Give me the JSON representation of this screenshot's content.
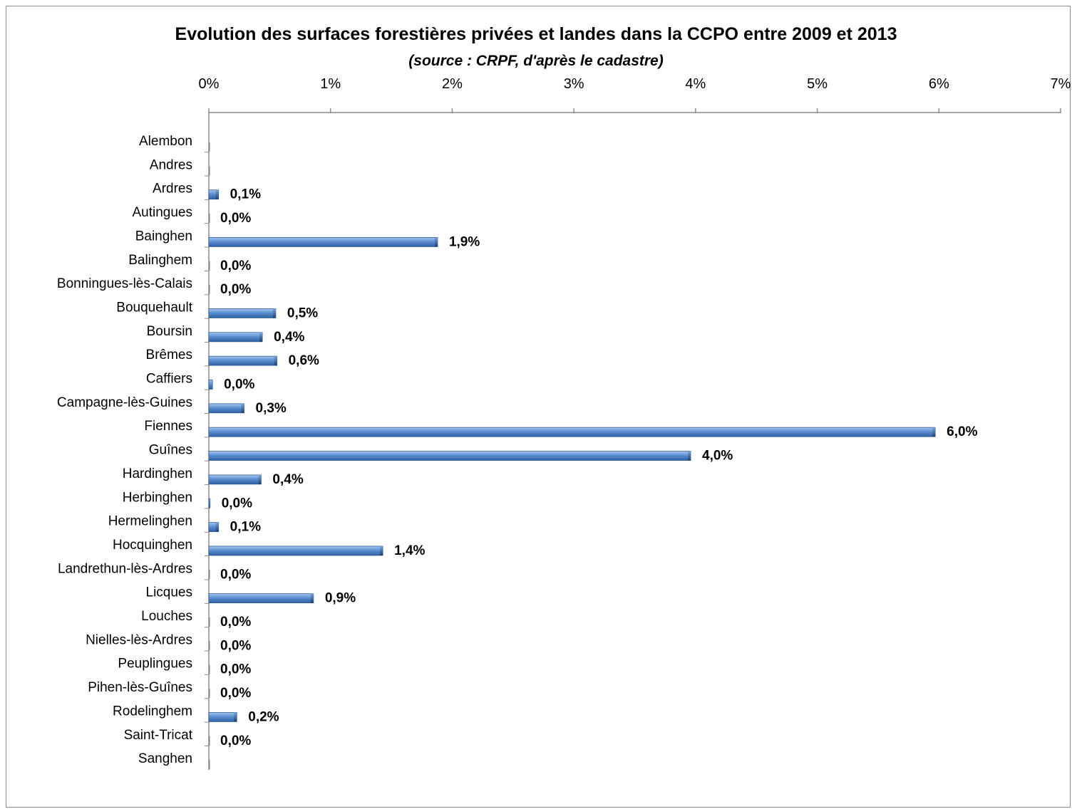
{
  "chart_data": {
    "type": "bar",
    "orientation": "horizontal",
    "title": "Evolution des surfaces forestières privées et landes dans la CCPO entre 2009 et 2013",
    "subtitle": "(source : CRPF, d'après le cadastre)",
    "xlim": [
      0,
      7
    ],
    "x_ticks": [
      "0%",
      "1%",
      "2%",
      "3%",
      "4%",
      "5%",
      "6%",
      "7%"
    ],
    "x_axis_position": "top",
    "grid": false,
    "bar_color": "#4f81bd",
    "categories": [
      "Alembon",
      "Andres",
      "Ardres",
      "Autingues",
      "Bainghen",
      "Balinghem",
      "Bonningues-lès-Calais",
      "Bouquehault",
      "Boursin",
      "Brêmes",
      "Caffiers",
      "Campagne-lès-Guines",
      "Fiennes",
      "Guînes",
      "Hardinghen",
      "Herbinghen",
      "Hermelinghen",
      "Hocquinghen",
      "Landrethun-lès-Ardres",
      "Licques",
      "Louches",
      "Nielles-lès-Ardres",
      "Peuplingues",
      "Pihen-lès-Guînes",
      "Rodelinghem",
      "Saint-Tricat",
      "Sanghen"
    ],
    "values": [
      0,
      0,
      0.08,
      0,
      1.88,
      0,
      0,
      0.55,
      0.44,
      0.56,
      0.03,
      0.29,
      5.97,
      3.96,
      0.43,
      0.01,
      0.08,
      1.43,
      0,
      0.86,
      0,
      0,
      0,
      0,
      0.23,
      0,
      0
    ],
    "data_labels": [
      "",
      "",
      "0,1%",
      "0,0%",
      "1,9%",
      "0,0%",
      "0,0%",
      "0,5%",
      "0,4%",
      "0,6%",
      "0,0%",
      "0,3%",
      "6,0%",
      "4,0%",
      "0,4%",
      "0,0%",
      "0,1%",
      "1,4%",
      "0,0%",
      "0,9%",
      "0,0%",
      "0,0%",
      "0,0%",
      "0,0%",
      "0,2%",
      "0,0%",
      ""
    ]
  }
}
